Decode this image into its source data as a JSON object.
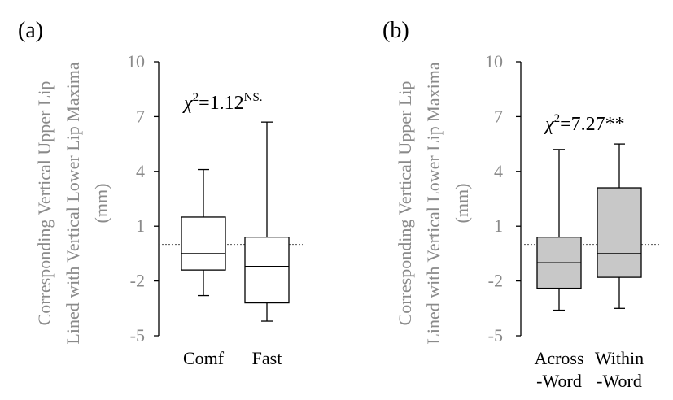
{
  "chart_data": [
    {
      "type": "box",
      "panel_label": "(a)",
      "ylabel": [
        "Corresponding Vertical Upper Lip",
        "Lined with Vertical Lower Lip Maxima",
        "(mm)"
      ],
      "yticks": [
        "10",
        "7",
        "4",
        "1",
        "-2",
        "-5"
      ],
      "ylim": [
        -5,
        10
      ],
      "reference_line": 0,
      "annotation": {
        "prefix": "χ",
        "sup1": "2",
        "value": "=1.12",
        "sup2": "NS."
      },
      "categories": [
        [
          "Comf"
        ],
        [
          "Fast"
        ]
      ],
      "boxes": [
        {
          "min": -2.8,
          "q1": -1.4,
          "median": -0.5,
          "q3": 1.5,
          "max": 4.1
        },
        {
          "min": -4.2,
          "q1": -3.2,
          "median": -1.2,
          "q3": 0.4,
          "max": 6.7
        }
      ],
      "fill": "#ffffff"
    },
    {
      "type": "box",
      "panel_label": "(b)",
      "ylabel": [
        "Corresponding Vertical Upper Lip",
        "Lined with Vertical Lower Lip Maxima",
        "(mm)"
      ],
      "yticks": [
        "10",
        "7",
        "4",
        "1",
        "-2",
        "-5"
      ],
      "ylim": [
        -5,
        10
      ],
      "reference_line": 0,
      "annotation": {
        "prefix": "χ",
        "sup1": "2",
        "value": "=7.27**",
        "sup2": ""
      },
      "categories": [
        [
          "Across",
          "-Word"
        ],
        [
          "Within",
          "-Word"
        ]
      ],
      "boxes": [
        {
          "min": -3.6,
          "q1": -2.4,
          "median": -1.0,
          "q3": 0.4,
          "max": 5.2
        },
        {
          "min": -3.5,
          "q1": -1.8,
          "median": -0.5,
          "q3": 3.1,
          "max": 5.5
        }
      ],
      "fill": "#c8c8c8"
    }
  ]
}
